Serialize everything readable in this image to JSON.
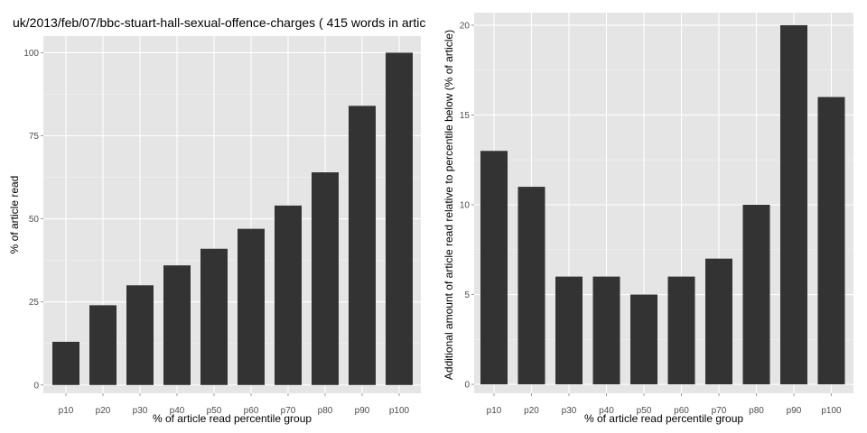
{
  "chart_data": [
    {
      "type": "bar",
      "title": "uk/2013/feb/07/bbc-stuart-hall-sexual-offence-charges ( 415 words in artic",
      "xlabel": "% of article read percentile group",
      "ylabel": "% of article read",
      "categories": [
        "p10",
        "p20",
        "p30",
        "p40",
        "p50",
        "p60",
        "p70",
        "p80",
        "p90",
        "p100"
      ],
      "values": [
        13,
        24,
        30,
        36,
        41,
        47,
        54,
        64,
        84,
        100
      ],
      "yticks": [
        0,
        25,
        50,
        75,
        100
      ],
      "ylim": [
        -2.5,
        105
      ],
      "grid": true,
      "colors": {
        "bar": "#333333",
        "panel": "#e5e5e5"
      }
    },
    {
      "type": "bar",
      "title": "",
      "xlabel": "% of article read percentile group",
      "ylabel": "Additional amount of article read relative to percentile below (% of article)",
      "categories": [
        "p10",
        "p20",
        "p30",
        "p40",
        "p50",
        "p60",
        "p70",
        "p80",
        "p90",
        "p100"
      ],
      "values": [
        13,
        11,
        6,
        6,
        5,
        6,
        7,
        10,
        20,
        16
      ],
      "yticks": [
        0,
        5,
        10,
        15,
        20
      ],
      "ylim": [
        -0.5,
        20.7
      ],
      "grid": true,
      "colors": {
        "bar": "#333333",
        "panel": "#e5e5e5"
      }
    }
  ]
}
